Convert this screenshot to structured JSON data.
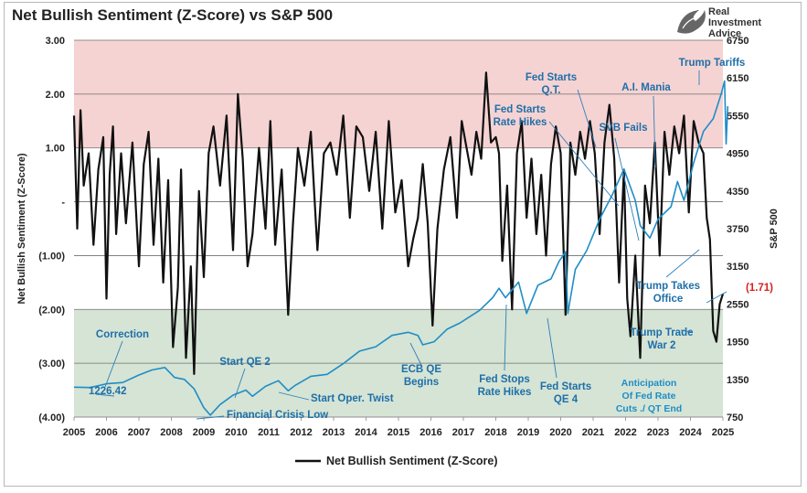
{
  "title": "Net Bullish Sentiment (Z-Score) vs S&P 500",
  "brand": [
    "Real",
    "Investment",
    "Advice"
  ],
  "chart_data": {
    "type": "line",
    "title": "Net Bullish Sentiment (Z-Score) vs S&P 500",
    "ylabel_left": "Net Bullish Sentiment (Z-Score)",
    "ylabel_right": "S&P 500",
    "x_range": [
      2005,
      2025
    ],
    "x_ticks": [
      "2005",
      "2006",
      "2007",
      "2008",
      "2009",
      "2010",
      "2011",
      "2012",
      "2013",
      "2014",
      "2015",
      "2016",
      "2017",
      "2018",
      "2019",
      "2020",
      "2021",
      "2022",
      "2023",
      "2024",
      "2025"
    ],
    "ylim_left": [
      -4,
      3
    ],
    "yticks_left": [
      "3.00",
      "2.00",
      "1.00",
      "-",
      "(1.00)",
      "(2.00)",
      "(3.00)",
      "(4.00)"
    ],
    "ylim_right": [
      750,
      6750
    ],
    "yticks_right": [
      "6750",
      "6150",
      "5550",
      "4950",
      "4350",
      "3750",
      "3150",
      "2550",
      "1950",
      "1350",
      "750"
    ],
    "bands": [
      {
        "name": "overbought",
        "from": 1,
        "to": 3,
        "color": "#f6d3d3"
      },
      {
        "name": "oversold",
        "from": -4,
        "to": -2,
        "color": "#d5e4d5"
      }
    ],
    "legend": "Net Bullish Sentiment (Z-Score)",
    "legend_position": "bottom-center",
    "series": [
      {
        "name": "Net Bullish Sentiment (Z-Score)",
        "axis": "left",
        "color": "#111111",
        "x": [
          2005.0,
          2005.1,
          2005.2,
          2005.3,
          2005.45,
          2005.6,
          2005.75,
          2005.9,
          2006.0,
          2006.1,
          2006.2,
          2006.3,
          2006.45,
          2006.6,
          2006.8,
          2007.0,
          2007.15,
          2007.3,
          2007.45,
          2007.6,
          2007.75,
          2007.9,
          2008.05,
          2008.2,
          2008.3,
          2008.45,
          2008.6,
          2008.7,
          2008.85,
          2009.0,
          2009.15,
          2009.3,
          2009.5,
          2009.7,
          2009.9,
          2010.05,
          2010.2,
          2010.35,
          2010.5,
          2010.7,
          2010.9,
          2011.05,
          2011.2,
          2011.4,
          2011.6,
          2011.75,
          2011.9,
          2012.1,
          2012.3,
          2012.5,
          2012.7,
          2012.9,
          2013.1,
          2013.3,
          2013.5,
          2013.7,
          2013.9,
          2014.1,
          2014.3,
          2014.5,
          2014.7,
          2014.9,
          2015.1,
          2015.3,
          2015.45,
          2015.6,
          2015.75,
          2015.9,
          2016.05,
          2016.2,
          2016.4,
          2016.6,
          2016.8,
          2016.95,
          2017.1,
          2017.25,
          2017.4,
          2017.55,
          2017.7,
          2017.85,
          2018.0,
          2018.1,
          2018.2,
          2018.35,
          2018.5,
          2018.65,
          2018.8,
          2018.95,
          2019.1,
          2019.25,
          2019.4,
          2019.55,
          2019.7,
          2019.85,
          2020.0,
          2020.15,
          2020.3,
          2020.45,
          2020.6,
          2020.75,
          2020.9,
          2021.05,
          2021.2,
          2021.35,
          2021.5,
          2021.65,
          2021.8,
          2021.95,
          2022.05,
          2022.15,
          2022.3,
          2022.45,
          2022.6,
          2022.75,
          2022.9,
          2023.05,
          2023.2,
          2023.35,
          2023.5,
          2023.65,
          2023.8,
          2023.95,
          2024.1,
          2024.25,
          2024.4,
          2024.5,
          2024.6,
          2024.7,
          2024.8,
          2024.9,
          2025.0
        ],
        "values": [
          1.6,
          -0.5,
          1.7,
          0.3,
          0.9,
          -0.8,
          0.6,
          1.2,
          -1.8,
          0.5,
          1.4,
          -0.6,
          0.9,
          -0.4,
          1.1,
          -1.2,
          0.7,
          1.3,
          -0.8,
          0.8,
          -1.5,
          0.4,
          -2.7,
          -1.6,
          0.6,
          -2.9,
          -1.2,
          -3.2,
          0.2,
          -1.4,
          0.9,
          1.4,
          0.3,
          1.6,
          -0.9,
          2.0,
          0.8,
          -1.2,
          -0.6,
          1.0,
          -0.5,
          1.5,
          -0.8,
          0.6,
          -2.1,
          -0.4,
          1.0,
          0.3,
          1.3,
          -0.9,
          0.9,
          1.1,
          0.5,
          1.6,
          -0.3,
          1.4,
          1.2,
          0.2,
          1.3,
          -0.5,
          1.5,
          -0.2,
          0.4,
          -1.2,
          -0.7,
          -0.3,
          0.7,
          -0.4,
          -2.3,
          -0.5,
          0.6,
          1.2,
          -0.3,
          1.5,
          1.0,
          0.5,
          1.3,
          0.8,
          2.4,
          1.1,
          1.2,
          0.9,
          -1.1,
          0.3,
          -2.0,
          0.9,
          1.5,
          -0.3,
          0.8,
          -0.6,
          0.5,
          -1.0,
          0.7,
          1.4,
          0.9,
          -2.1,
          1.1,
          0.5,
          1.3,
          0.8,
          1.5,
          0.9,
          -0.6,
          1.1,
          1.8,
          0.8,
          -1.5,
          0.6,
          -1.8,
          -2.5,
          -1.0,
          -2.9,
          0.3,
          -0.4,
          1.1,
          -1.0,
          1.3,
          0.5,
          1.4,
          0.9,
          1.6,
          -0.2,
          1.5,
          1.1,
          0.9,
          -0.3,
          -0.7,
          -2.4,
          -2.6,
          -1.9,
          -1.71
        ]
      },
      {
        "name": "S&P 500",
        "axis": "right",
        "color": "#1f8dc6",
        "x": [
          2005.0,
          2005.5,
          2006.0,
          2006.5,
          2007.0,
          2007.4,
          2007.8,
          2008.1,
          2008.4,
          2008.7,
          2009.0,
          2009.2,
          2009.5,
          2009.9,
          2010.3,
          2010.5,
          2010.9,
          2011.3,
          2011.6,
          2011.8,
          2012.3,
          2012.8,
          2013.3,
          2013.8,
          2014.3,
          2014.8,
          2015.3,
          2015.6,
          2015.75,
          2016.1,
          2016.5,
          2016.9,
          2017.5,
          2017.9,
          2018.1,
          2018.3,
          2018.7,
          2018.95,
          2019.3,
          2019.7,
          2019.95,
          2020.15,
          2020.22,
          2020.45,
          2020.8,
          2021.2,
          2021.6,
          2021.95,
          2022.3,
          2022.45,
          2022.75,
          2023.0,
          2023.4,
          2023.6,
          2023.8,
          2024.1,
          2024.4,
          2024.7,
          2024.95,
          2025.05,
          2025.1,
          2025.15
        ],
        "values": [
          1226.42,
          1220,
          1280,
          1300,
          1420,
          1500,
          1540,
          1380,
          1350,
          1200,
          900,
          780,
          950,
          1100,
          1180,
          1080,
          1240,
          1330,
          1170,
          1250,
          1400,
          1430,
          1600,
          1800,
          1870,
          2050,
          2100,
          2050,
          1900,
          1950,
          2150,
          2250,
          2450,
          2650,
          2800,
          2650,
          2900,
          2400,
          2850,
          2950,
          3230,
          3380,
          2400,
          3100,
          3400,
          3900,
          4300,
          4700,
          4200,
          3800,
          3600,
          3900,
          4100,
          4500,
          4200,
          4800,
          5300,
          5500,
          5900,
          6100,
          5100,
          5700
        ]
      }
    ],
    "annotations": [
      {
        "text": "Correction",
        "color": "#1f6fa8"
      },
      {
        "text": "1226.42",
        "color": "#1f6fa8"
      },
      {
        "text": "Start QE 2",
        "color": "#1f6fa8"
      },
      {
        "text": "Financial Crisis Low",
        "color": "#1f6fa8"
      },
      {
        "text": "Start Oper. Twist",
        "color": "#1f6fa8"
      },
      {
        "text": "ECB QE Begins",
        "color": "#1f6fa8"
      },
      {
        "text": "Fed Stops Rate Hikes",
        "color": "#1f6fa8"
      },
      {
        "text": "Fed Starts QE 4",
        "color": "#1f6fa8"
      },
      {
        "text": "Fed Starts Q.T.",
        "color": "#1f6fa8"
      },
      {
        "text": "Fed Starts Rate Hikes",
        "color": "#1f6fa8"
      },
      {
        "text": "SVB Fails",
        "color": "#1f6fa8"
      },
      {
        "text": "A.I. Mania",
        "color": "#1f6fa8"
      },
      {
        "text": "Trump Tariffs",
        "color": "#1f6fa8"
      },
      {
        "text": "Trump Takes Office",
        "color": "#1f6fa8"
      },
      {
        "text": "Trump Trade War 2",
        "color": "#1f6fa8"
      },
      {
        "text": "Anticipation Of Fed Rate Cuts ./ QT End",
        "color": "#1f8dc6"
      },
      {
        "text": "(1.71)",
        "color": "#d62020"
      }
    ]
  }
}
